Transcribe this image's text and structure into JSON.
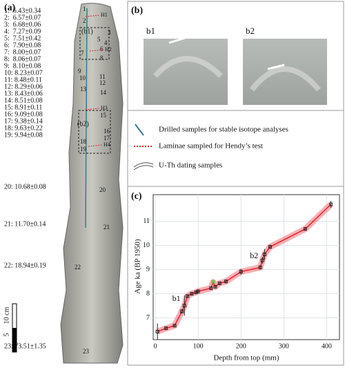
{
  "panel_a": {
    "label": "(a)",
    "samples": [
      "1:  6.43±0.34",
      "2:  6.57±0.07",
      "3:  6.68±0.06",
      "4:  7.27±0.09",
      "5:  7.51±0.42",
      "6:  7.90±0.08",
      "7:  8.00±0.07",
      "8:  8.06±0.07",
      "9:  8.10±0.08",
      "10: 8.23±0.07",
      "11: 8.48±0.11",
      "12: 8.29±0.06",
      "13: 8.43±0.06",
      "14: 8.51±0.08",
      "15: 8.91±0.11",
      "16: 9.09±0.08",
      "17: 9.38±0.14",
      "18: 9.63±0.22",
      "19: 9.94±0.08",
      "20: 10.68±0.08",
      "21: 11.70±0.14",
      "22: 18.94±0.19",
      "23: 73.51±1.35"
    ],
    "highlight_sample": 10,
    "sample_markers": [
      "1",
      "2",
      "3",
      "4",
      "5",
      "6",
      "7",
      "8",
      "9",
      "10",
      "11",
      "12",
      "13",
      "14",
      "15",
      "16",
      "17",
      "18",
      "19",
      "20",
      "21",
      "22",
      "23"
    ],
    "hendy_labels": [
      "H1",
      "H2",
      "H3",
      "H4"
    ],
    "inset_labels": [
      "(b1)",
      "(b2)"
    ],
    "scale_bar": {
      "label": "10 cm",
      "mid": "5"
    }
  },
  "panel_b": {
    "label": "(b)",
    "photos": [
      "b1",
      "b2"
    ]
  },
  "legend": [
    "Drilled samples for stable isotope analyses",
    "Laminae sampled for Hendy’s test",
    "U-Th dating samples"
  ],
  "chart_data": {
    "type": "scatter",
    "label": "(c)",
    "x_label": "Depth from top (mm)",
    "y_label": "Age ka (BP 1950)",
    "x": [
      5,
      25,
      45,
      62,
      68,
      75,
      85,
      95,
      100,
      130,
      135,
      140,
      150,
      165,
      200,
      245,
      250,
      255,
      268,
      350,
      410
    ],
    "values": [
      6.43,
      6.57,
      6.68,
      7.27,
      7.51,
      7.9,
      8.0,
      8.06,
      8.1,
      8.23,
      8.48,
      8.29,
      8.43,
      8.51,
      8.91,
      9.09,
      9.38,
      9.63,
      9.94,
      10.68,
      11.7
    ],
    "errors": [
      0.34,
      0.07,
      0.06,
      0.09,
      0.42,
      0.08,
      0.07,
      0.07,
      0.08,
      0.07,
      0.11,
      0.06,
      0.06,
      0.08,
      0.11,
      0.08,
      0.14,
      0.22,
      0.08,
      0.08,
      0.14
    ],
    "color": "#222222",
    "highlight_color": "#66bb33",
    "highlight_index": 10,
    "model_color": "#e8202a",
    "annotations": [
      "b1",
      "b2"
    ],
    "xlim": [
      -5,
      430
    ],
    "xticks": [
      0,
      100,
      200,
      300,
      400
    ],
    "ylim": [
      6.1,
      12.1
    ],
    "yticks": [
      7,
      8,
      9,
      10,
      11
    ],
    "grid": true
  }
}
